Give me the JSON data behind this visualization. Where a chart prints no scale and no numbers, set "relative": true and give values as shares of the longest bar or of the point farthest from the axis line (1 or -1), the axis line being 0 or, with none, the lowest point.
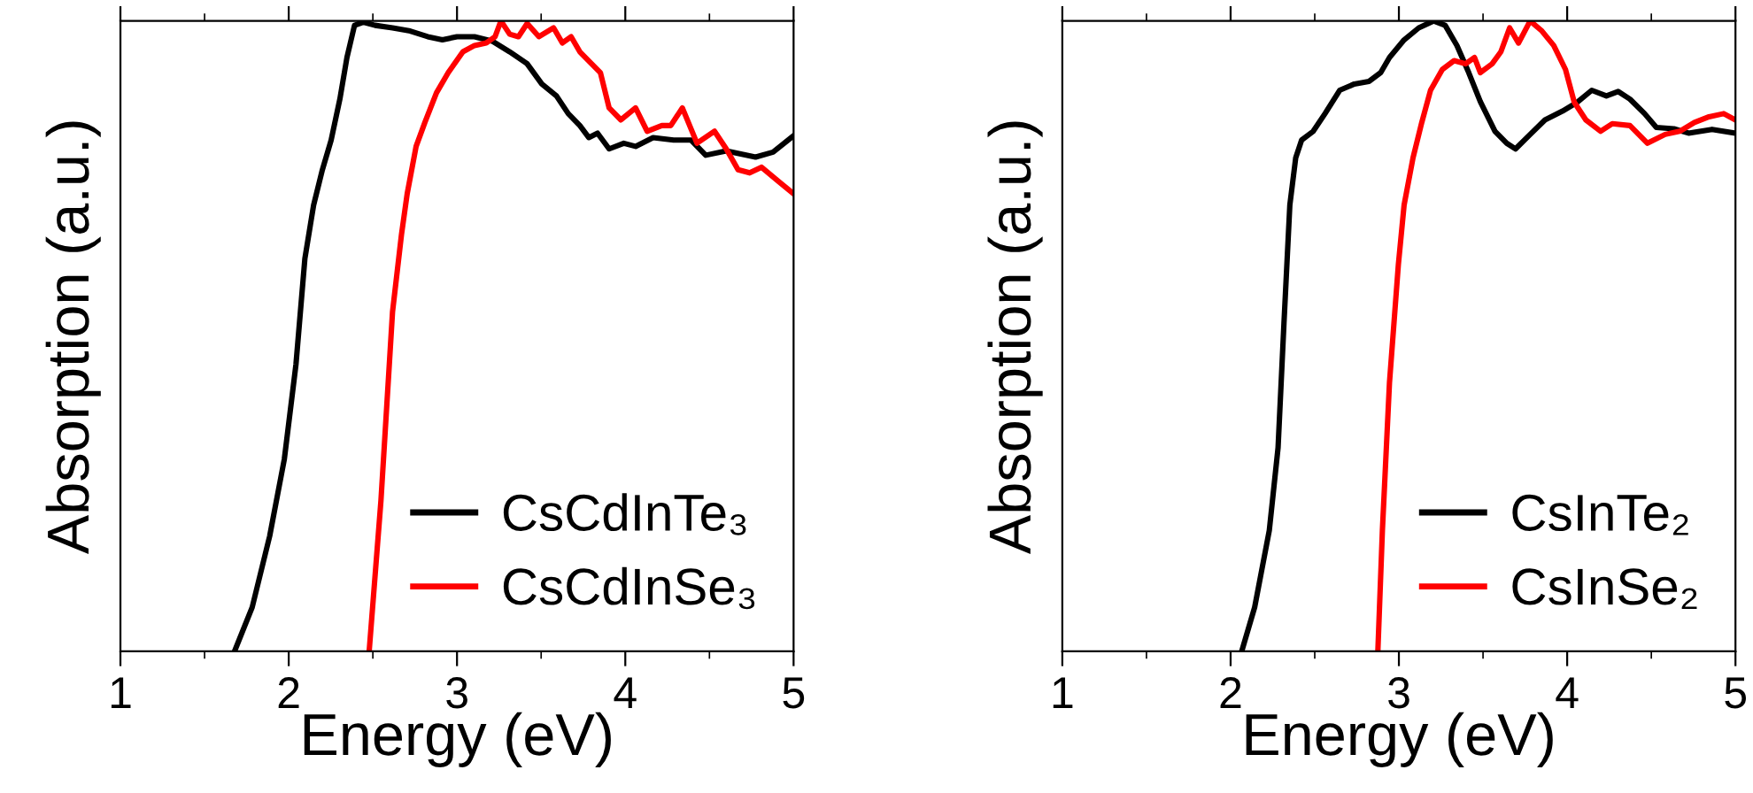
{
  "chart_data": [
    {
      "type": "line",
      "relative": true,
      "xlabel": "Energy (eV)",
      "ylabel": "Absorption (a.u.)",
      "xlim": [
        1,
        5
      ],
      "xticks": [
        1,
        {
          "value": 1.5,
          "label": null
        },
        2,
        {
          "value": 2.5,
          "label": null
        },
        3,
        {
          "value": 3.5,
          "label": null
        },
        4,
        {
          "value": 4.5,
          "label": null
        },
        5
      ],
      "legend": "bottom right",
      "grid": false,
      "series": [
        {
          "name": "CsCdInTe₃",
          "color": "#000000",
          "x": [
            1.678,
            1.783,
            1.887,
            1.974,
            2.043,
            2.096,
            2.148,
            2.2,
            2.252,
            2.304,
            2.346,
            2.391,
            2.443,
            2.513,
            2.617,
            2.722,
            2.826,
            2.913,
            3.0,
            3.104,
            3.209,
            3.313,
            3.417,
            3.504,
            3.591,
            3.661,
            3.73,
            3.783,
            3.835,
            3.904,
            3.991,
            4.061,
            4.165,
            4.287,
            4.391,
            4.478,
            4.6,
            4.774,
            4.878,
            5.0
          ],
          "values": [
            0,
            0.07,
            0.183,
            0.305,
            0.455,
            0.623,
            0.708,
            0.764,
            0.811,
            0.876,
            0.942,
            0.993,
            0.998,
            0.993,
            0.989,
            0.984,
            0.975,
            0.97,
            0.975,
            0.975,
            0.968,
            0.951,
            0.932,
            0.9,
            0.881,
            0.853,
            0.834,
            0.815,
            0.822,
            0.797,
            0.806,
            0.801,
            0.815,
            0.811,
            0.811,
            0.787,
            0.794,
            0.784,
            0.792,
            0.818
          ]
        },
        {
          "name": "CsCdInSe₃",
          "color": "#ff0000",
          "x": [
            2.478,
            2.548,
            2.617,
            2.67,
            2.704,
            2.757,
            2.809,
            2.878,
            2.948,
            3.035,
            3.104,
            3.174,
            3.226,
            3.261,
            3.313,
            3.365,
            3.417,
            3.487,
            3.574,
            3.626,
            3.678,
            3.73,
            3.8,
            3.852,
            3.904,
            3.974,
            4.061,
            4.13,
            4.217,
            4.27,
            4.339,
            4.426,
            4.53,
            4.6,
            4.67,
            4.739,
            4.809,
            4.913,
            5.0
          ],
          "values": [
            0,
            0.239,
            0.539,
            0.661,
            0.726,
            0.801,
            0.839,
            0.886,
            0.918,
            0.951,
            0.961,
            0.965,
            0.975,
            1,
            0.979,
            0.975,
            0.996,
            0.975,
            0.989,
            0.965,
            0.975,
            0.951,
            0.932,
            0.918,
            0.862,
            0.843,
            0.862,
            0.825,
            0.834,
            0.834,
            0.862,
            0.806,
            0.825,
            0.797,
            0.764,
            0.759,
            0.768,
            0.745,
            0.726
          ]
        }
      ]
    },
    {
      "type": "line",
      "relative": true,
      "xlabel": "Energy (eV)",
      "ylabel": "Absorption (a.u.)",
      "xlim": [
        1,
        5
      ],
      "xticks": [
        1,
        {
          "value": 1.5,
          "label": null
        },
        2,
        {
          "value": 2.5,
          "label": null
        },
        3,
        {
          "value": 3.5,
          "label": null
        },
        4,
        {
          "value": 4.5,
          "label": null
        },
        5
      ],
      "legend": "bottom right",
      "grid": false,
      "series": [
        {
          "name": "CsInTe₂",
          "color": "#000000",
          "x": [
            2.066,
            2.143,
            2.23,
            2.282,
            2.317,
            2.352,
            2.387,
            2.422,
            2.491,
            2.561,
            2.648,
            2.735,
            2.822,
            2.892,
            2.944,
            3.031,
            3.118,
            3.206,
            3.275,
            3.345,
            3.415,
            3.484,
            3.571,
            3.641,
            3.693,
            3.78,
            3.868,
            3.972,
            4.059,
            4.146,
            4.233,
            4.303,
            4.373,
            4.46,
            4.53,
            4.634,
            4.721,
            4.861,
            5.0
          ],
          "values": [
            0,
            0.07,
            0.192,
            0.323,
            0.52,
            0.708,
            0.783,
            0.811,
            0.825,
            0.853,
            0.89,
            0.9,
            0.904,
            0.918,
            0.942,
            0.97,
            0.989,
            1,
            0.993,
            0.961,
            0.918,
            0.872,
            0.825,
            0.806,
            0.797,
            0.82,
            0.843,
            0.857,
            0.871,
            0.89,
            0.881,
            0.888,
            0.876,
            0.853,
            0.831,
            0.829,
            0.822,
            0.828,
            0.822
          ]
        },
        {
          "name": "CsInSe₂",
          "color": "#ff0000",
          "x": [
            2.875,
            2.902,
            2.944,
            2.997,
            3.031,
            3.084,
            3.136,
            3.188,
            3.258,
            3.328,
            3.397,
            3.449,
            3.484,
            3.554,
            3.606,
            3.658,
            3.711,
            3.78,
            3.85,
            3.92,
            3.99,
            4.042,
            4.111,
            4.199,
            4.268,
            4.373,
            4.477,
            4.582,
            4.669,
            4.756,
            4.843,
            4.93,
            5.0
          ],
          "values": [
            0,
            0.192,
            0.426,
            0.614,
            0.708,
            0.783,
            0.839,
            0.89,
            0.923,
            0.937,
            0.932,
            0.942,
            0.918,
            0.932,
            0.951,
            0.989,
            0.965,
            1,
            0.984,
            0.961,
            0.923,
            0.871,
            0.843,
            0.825,
            0.837,
            0.834,
            0.806,
            0.82,
            0.825,
            0.839,
            0.848,
            0.853,
            0.843
          ]
        }
      ]
    }
  ]
}
